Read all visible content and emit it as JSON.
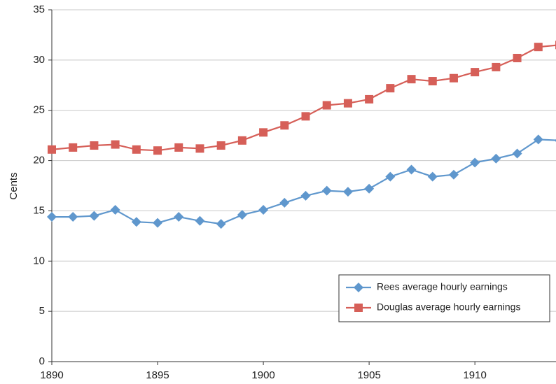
{
  "chart_data": {
    "type": "line",
    "y_label": "Cents",
    "x": [
      1890,
      1891,
      1892,
      1893,
      1894,
      1895,
      1896,
      1897,
      1898,
      1899,
      1900,
      1901,
      1902,
      1903,
      1904,
      1905,
      1906,
      1907,
      1908,
      1909,
      1910,
      1911,
      1912,
      1913,
      1914
    ],
    "series": [
      {
        "name": "Rees average hourly earnings",
        "color": "#5f97cd",
        "marker": "diamond",
        "values": [
          14.4,
          14.4,
          14.5,
          15.1,
          13.9,
          13.8,
          14.4,
          14.0,
          13.7,
          14.6,
          15.1,
          15.8,
          16.5,
          17.0,
          16.9,
          17.2,
          18.4,
          19.1,
          18.4,
          18.6,
          19.8,
          20.2,
          20.7,
          22.1,
          22.0
        ]
      },
      {
        "name": "Douglas average hourly earnings",
        "color": "#d65f58",
        "marker": "square",
        "values": [
          21.1,
          21.3,
          21.5,
          21.6,
          21.1,
          21.0,
          21.3,
          21.2,
          21.5,
          22.0,
          22.8,
          23.5,
          24.4,
          25.5,
          25.7,
          26.1,
          27.2,
          28.1,
          27.9,
          28.2,
          28.8,
          29.3,
          30.2,
          31.3,
          31.5
        ]
      }
    ],
    "xlim": [
      1890,
      1914
    ],
    "xticks": [
      1890,
      1895,
      1900,
      1905,
      1910
    ],
    "ylim": [
      0,
      35
    ],
    "yticks": [
      0,
      5,
      10,
      15,
      20,
      25,
      30,
      35
    ],
    "grid": true,
    "legend": "lower right"
  }
}
